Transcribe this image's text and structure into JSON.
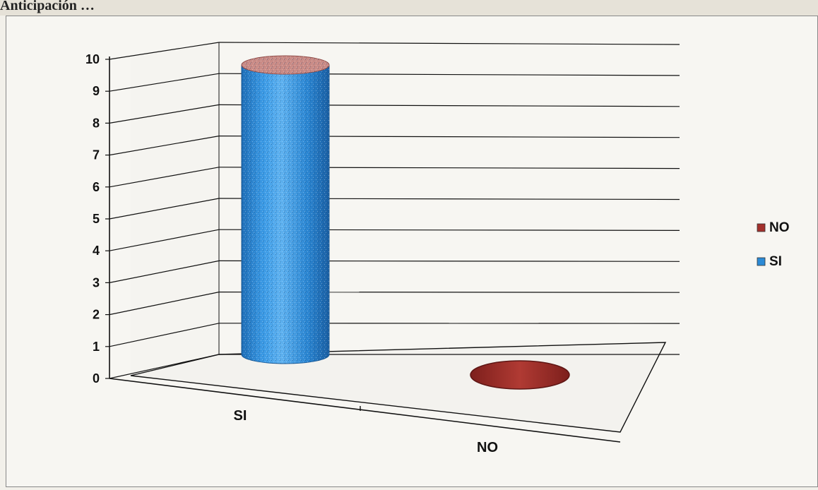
{
  "page": {
    "top_fragment": "Anticipación …"
  },
  "chart_data": {
    "type": "bar",
    "style": "3d-cylinder",
    "categories": [
      "SI",
      "NO"
    ],
    "series": [
      {
        "name": "SI",
        "values": [
          10,
          0
        ],
        "color": "#2b8ad6"
      },
      {
        "name": "NO",
        "values": [
          0,
          0
        ],
        "color": "#a3302c"
      }
    ],
    "ylim": [
      0,
      10
    ],
    "y_ticks": [
      "0",
      "1",
      "2",
      "3",
      "4",
      "5",
      "6",
      "7",
      "8",
      "9",
      "10"
    ],
    "grid": true,
    "legend": {
      "placement": "right",
      "entries": [
        "NO",
        "SI"
      ]
    },
    "title": "",
    "xlabel": "",
    "ylabel": ""
  }
}
